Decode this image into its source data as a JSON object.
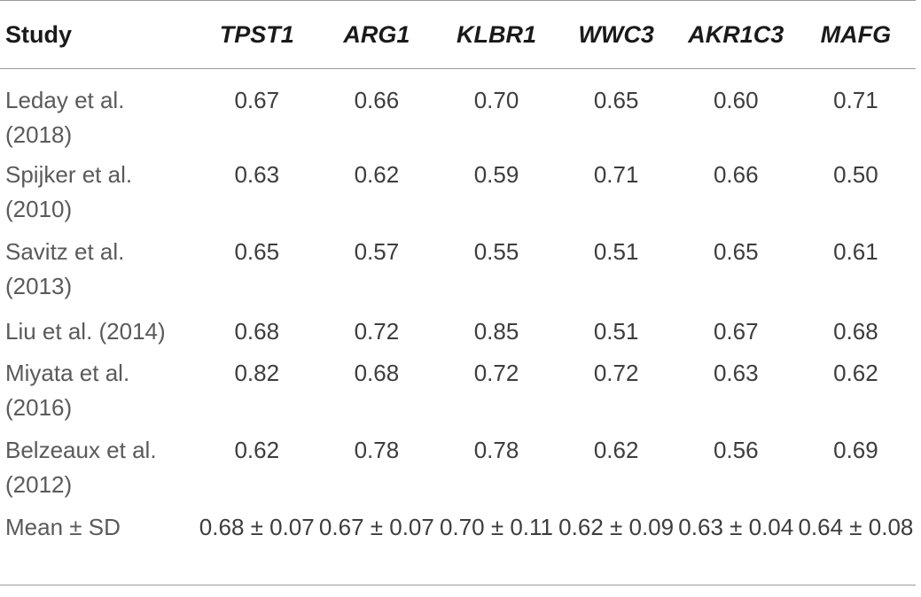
{
  "table": {
    "headers": [
      "Study",
      "TPST1",
      "ARG1",
      "KLBR1",
      "WWC3",
      "AKR1C3",
      "MAFG"
    ],
    "rows": [
      {
        "study": "Leday et al. (2018)",
        "values": [
          "0.67",
          "0.66",
          "0.70",
          "0.65",
          "0.60",
          "0.71"
        ]
      },
      {
        "study": "Spijker et al. (2010)",
        "values": [
          "0.63",
          "0.62",
          "0.59",
          "0.71",
          "0.66",
          "0.50"
        ]
      },
      {
        "study": "Savitz et al. (2013)",
        "values": [
          "0.65",
          "0.57",
          "0.55",
          "0.51",
          "0.65",
          "0.61"
        ]
      },
      {
        "study": "Liu et al. (2014)",
        "values": [
          "0.68",
          "0.72",
          "0.85",
          "0.51",
          "0.67",
          "0.68"
        ]
      },
      {
        "study": "Miyata et al. (2016)",
        "values": [
          "0.82",
          "0.68",
          "0.72",
          "0.72",
          "0.63",
          "0.62"
        ]
      },
      {
        "study": "Belzeaux et al. (2012)",
        "values": [
          "0.62",
          "0.78",
          "0.78",
          "0.62",
          "0.56",
          "0.69"
        ]
      },
      {
        "study": "Mean ± SD",
        "values": [
          "0.68 ± 0.07",
          "0.67 ± 0.07",
          "0.70 ± 0.11",
          "0.62 ± 0.09",
          "0.63 ± 0.04",
          "0.64 ± 0.08"
        ]
      }
    ]
  }
}
